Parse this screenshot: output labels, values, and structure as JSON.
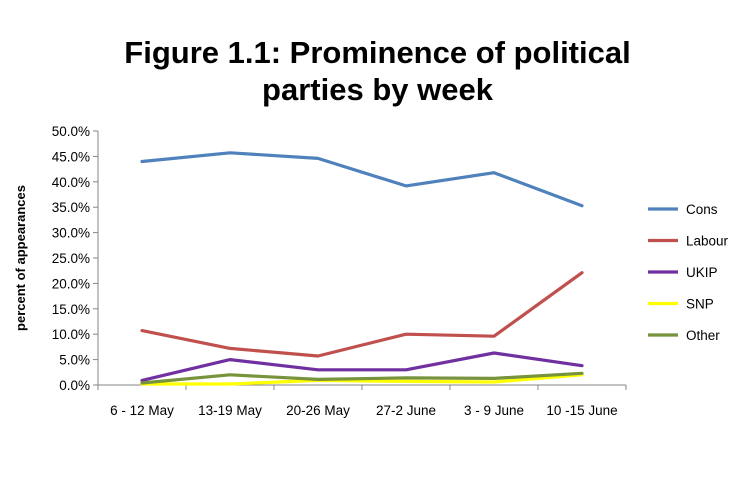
{
  "chart_data": {
    "type": "line",
    "title_lines": [
      "Figure 1.1: Prominence of political",
      "parties by week"
    ],
    "xlabel": "",
    "ylabel": "percent of appearances",
    "categories": [
      "6 - 12 May",
      "13-19 May",
      "20-26 May",
      "27-2 June",
      "3 - 9 June",
      "10 -15 June"
    ],
    "ylim": [
      0,
      50
    ],
    "yticks": [
      "0.0%",
      "5.0%",
      "10.0%",
      "15.0%",
      "20.0%",
      "25.0%",
      "30.0%",
      "35.0%",
      "40.0%",
      "45.0%",
      "50.0%"
    ],
    "grid": false,
    "legend_position": "right",
    "series": [
      {
        "name": "Cons",
        "color": "#4F81BD",
        "values": [
          44.0,
          45.7,
          44.6,
          39.2,
          41.8,
          35.3
        ]
      },
      {
        "name": "Labour",
        "color": "#C0504D",
        "values": [
          10.7,
          7.2,
          5.7,
          10.0,
          9.6,
          22.1
        ]
      },
      {
        "name": "UKIP",
        "color": "#7030A0",
        "values": [
          0.9,
          5.0,
          3.0,
          3.0,
          6.3,
          3.8
        ]
      },
      {
        "name": "SNP",
        "color": "#FFFF00",
        "values": [
          0.2,
          0.2,
          0.9,
          0.7,
          0.6,
          2.0
        ]
      },
      {
        "name": "Other",
        "color": "#77933C",
        "values": [
          0.4,
          2.0,
          1.1,
          1.4,
          1.3,
          2.3
        ]
      }
    ]
  }
}
